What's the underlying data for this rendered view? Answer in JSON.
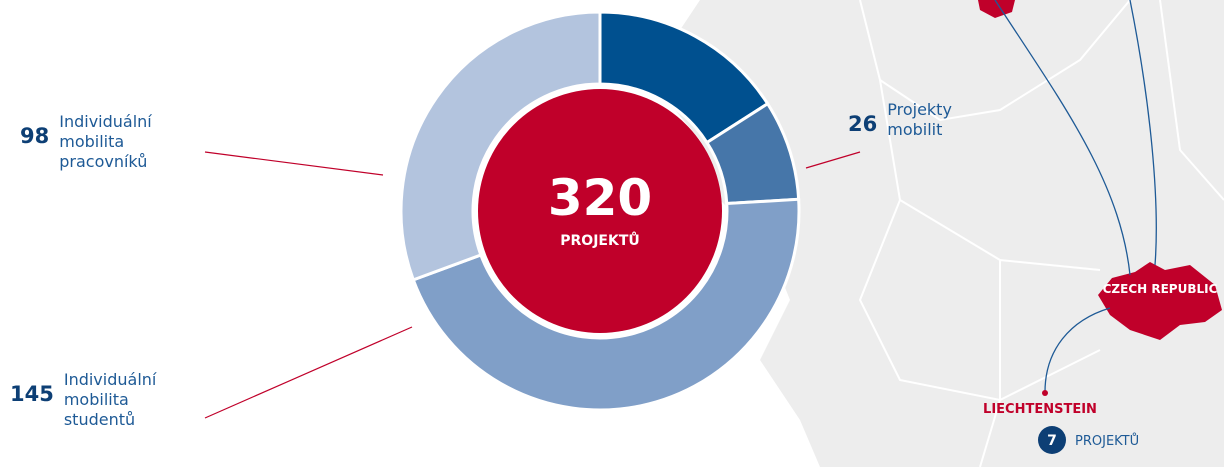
{
  "chart_data": {
    "type": "donut",
    "categories": [
      null,
      "Projekty mobilit",
      "Individuální mobilita studentů",
      "Individuální mobilita pracovníků"
    ],
    "values": [
      51,
      26,
      145,
      98
    ],
    "colors": [
      "#00508f",
      "#4676a9",
      "#809fc8",
      "#b3c4de"
    ],
    "total": 320,
    "total_label": "PROJEKTŮ",
    "center_color": "#c0002a"
  },
  "map": {
    "country": "CZECH REPUBLIC",
    "partner": "LIECHTENSTEIN",
    "projects": 7,
    "projects_label": "PROJEKTŮ"
  }
}
